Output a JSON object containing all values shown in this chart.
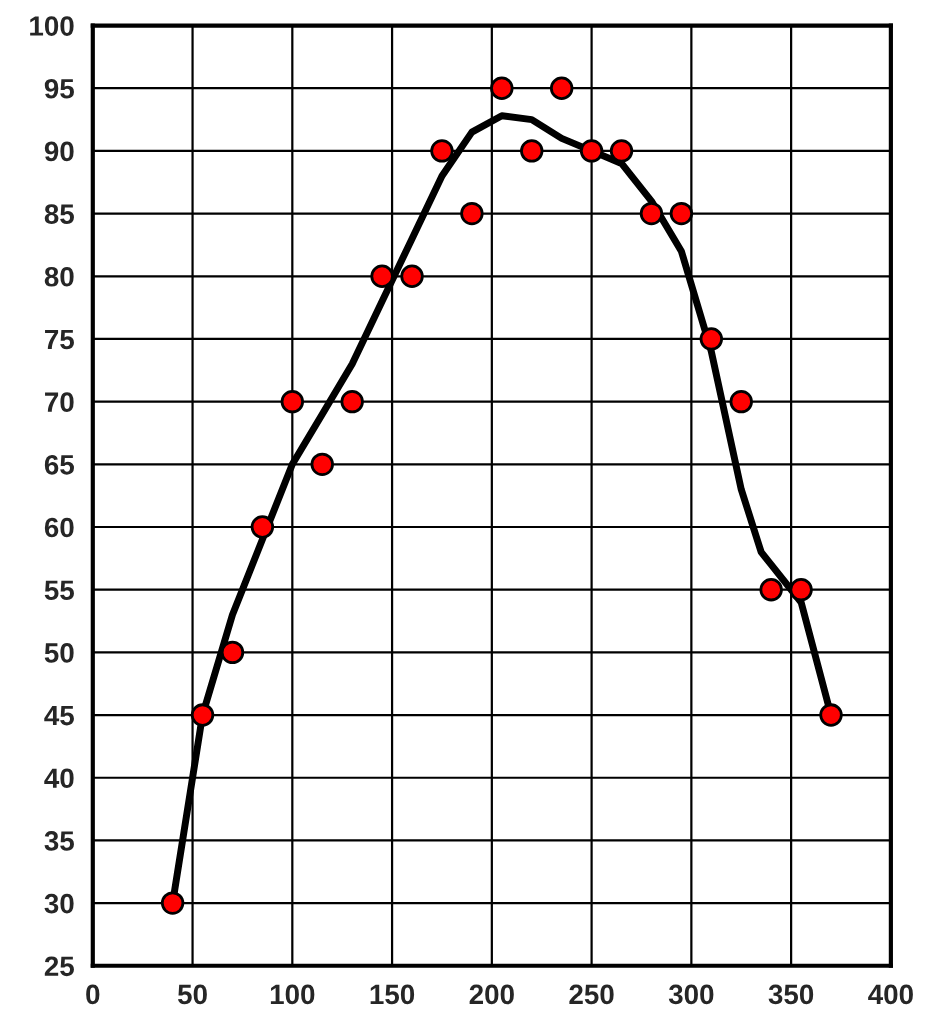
{
  "chart_data": {
    "type": "scatter",
    "xlim": [
      0,
      400
    ],
    "ylim": [
      25,
      100
    ],
    "xticks": [
      0,
      50,
      100,
      150,
      200,
      250,
      300,
      350,
      400
    ],
    "yticks": [
      25,
      30,
      35,
      40,
      45,
      50,
      55,
      60,
      65,
      70,
      75,
      80,
      85,
      90,
      95,
      100
    ],
    "grid": true,
    "series": [
      {
        "marker": "circle",
        "color": "#ff0000",
        "x": [
          40,
          55,
          70,
          85,
          100,
          115,
          130,
          145,
          160,
          175,
          190,
          205,
          220,
          235,
          250,
          265,
          280,
          295,
          310,
          325,
          340,
          355,
          370
        ],
        "values": [
          30,
          45,
          50,
          60,
          70,
          65,
          70,
          80,
          80,
          90,
          85,
          95,
          90,
          95,
          90,
          90,
          85,
          85,
          75,
          70,
          55,
          55,
          45
        ]
      },
      {
        "type": "line",
        "marker": "none",
        "color": "#000000",
        "x": [
          40,
          50,
          55,
          70,
          85,
          100,
          115,
          130,
          145,
          160,
          175,
          190,
          205,
          220,
          235,
          250,
          265,
          280,
          295,
          310,
          325,
          335,
          340,
          355,
          370
        ],
        "values": [
          30,
          40,
          45,
          53,
          59,
          65,
          69,
          73,
          78,
          83,
          88,
          91.5,
          92.8,
          92.5,
          91,
          90,
          89,
          86,
          82,
          74,
          63,
          58,
          57,
          54,
          45
        ]
      }
    ]
  }
}
